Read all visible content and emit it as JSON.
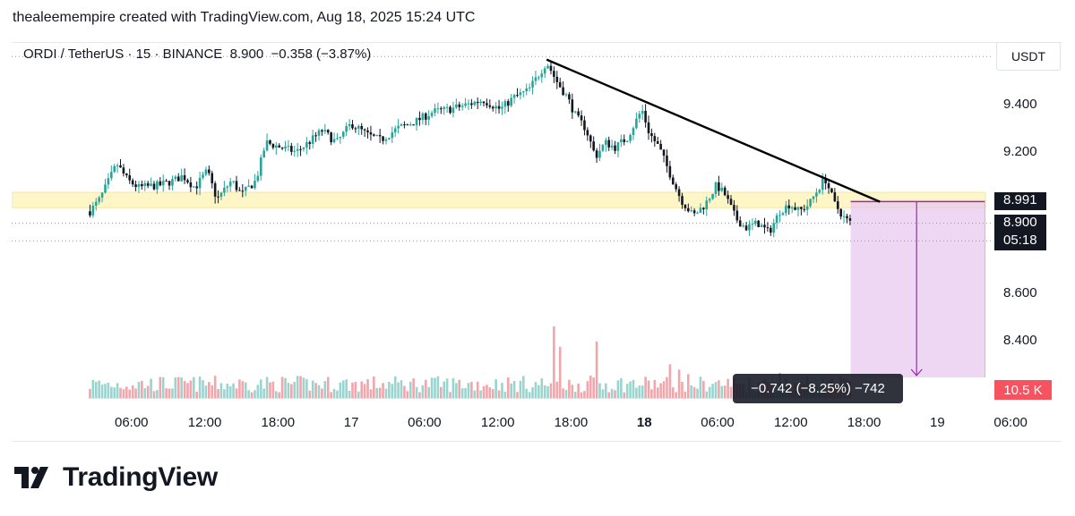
{
  "header": {
    "attribution": "thealeemempire created with TradingView.com, Aug 18, 2025 15:24 UTC"
  },
  "legend": {
    "symbol": "ORDI / TetherUS · 15 · BINANCE",
    "last": "8.900",
    "change": "−0.358 (−3.87%)"
  },
  "currency": "USDT",
  "price_tags": {
    "level": "8.991",
    "last": "8.900",
    "countdown": "05:18"
  },
  "volume_tag": "10.5 K",
  "measure": {
    "label": "−0.742 (−8.25%) −742",
    "shown": "742 (−8.25%) −742"
  },
  "brand": {
    "name": "TradingView"
  },
  "colors": {
    "up": "#26a69a",
    "down": "#131722",
    "vol_up": "#9ad4cf",
    "vol_down": "#f0a6ab",
    "support_band": "#fff6c8",
    "projection": "#e8c9ef",
    "projection_line": "#9c27b0",
    "last_tag": "#131722",
    "volume_tag": "#f7525f"
  },
  "chart_data": {
    "type": "candlestick",
    "symbol": "ORDI / TetherUS",
    "interval": "15",
    "exchange": "BINANCE",
    "ylim": [
      8.16,
      9.72
    ],
    "y_ticks": [
      9.4,
      9.2,
      8.6,
      8.4
    ],
    "y_tick_labels": [
      "9.400",
      "9.200",
      "8.600",
      "8.400"
    ],
    "x_ticks": [
      "06:00",
      "12:00",
      "18:00",
      "17",
      "06:00",
      "12:00",
      "18:00",
      "18",
      "06:00",
      "12:00",
      "18:00",
      "19",
      "06:00"
    ],
    "x_tick_times": [
      6,
      12,
      18,
      24,
      30,
      36,
      42,
      48,
      54,
      60,
      66,
      72,
      78
    ],
    "x_bold_index": 7,
    "price_path_hours": [
      [
        2.6,
        8.95
      ],
      [
        3.4,
        9.0
      ],
      [
        4.8,
        9.15
      ],
      [
        5.7,
        9.08
      ],
      [
        6.6,
        9.05
      ],
      [
        8.3,
        9.06
      ],
      [
        9.5,
        9.08
      ],
      [
        10.2,
        9.1
      ],
      [
        11.2,
        9.05
      ],
      [
        12.2,
        9.12
      ],
      [
        13.0,
        9.0
      ],
      [
        14.2,
        9.08
      ],
      [
        15.0,
        9.02
      ],
      [
        16.2,
        9.08
      ],
      [
        17.0,
        9.24
      ],
      [
        18.2,
        9.22
      ],
      [
        19.5,
        9.2
      ],
      [
        20.5,
        9.24
      ],
      [
        21.6,
        9.29
      ],
      [
        22.8,
        9.24
      ],
      [
        24.0,
        9.32
      ],
      [
        25.4,
        9.27
      ],
      [
        26.4,
        9.25
      ],
      [
        27.8,
        9.3
      ],
      [
        29.3,
        9.33
      ],
      [
        30.7,
        9.37
      ],
      [
        32.0,
        9.38
      ],
      [
        33.5,
        9.4
      ],
      [
        34.8,
        9.42
      ],
      [
        36.2,
        9.38
      ],
      [
        37.3,
        9.43
      ],
      [
        38.5,
        9.46
      ],
      [
        39.4,
        9.53
      ],
      [
        40.0,
        9.58
      ],
      [
        40.8,
        9.5
      ],
      [
        41.7,
        9.43
      ],
      [
        42.4,
        9.35
      ],
      [
        43.2,
        9.3
      ],
      [
        44.0,
        9.18
      ],
      [
        44.8,
        9.24
      ],
      [
        45.6,
        9.22
      ],
      [
        46.6,
        9.26
      ],
      [
        47.2,
        9.32
      ],
      [
        47.8,
        9.38
      ],
      [
        48.4,
        9.28
      ],
      [
        49.2,
        9.22
      ],
      [
        50.0,
        9.12
      ],
      [
        51.0,
        9.0
      ],
      [
        52.0,
        8.93
      ],
      [
        53.0,
        8.98
      ],
      [
        53.9,
        9.06
      ],
      [
        54.6,
        9.02
      ],
      [
        55.5,
        8.92
      ],
      [
        56.3,
        8.88
      ],
      [
        57.3,
        8.9
      ],
      [
        58.2,
        8.86
      ],
      [
        59.1,
        8.95
      ],
      [
        59.9,
        8.98
      ],
      [
        60.7,
        8.95
      ],
      [
        61.5,
        8.98
      ],
      [
        62.3,
        9.05
      ],
      [
        62.8,
        9.09
      ],
      [
        63.6,
        8.98
      ],
      [
        64.4,
        8.92
      ],
      [
        64.9,
        8.9
      ]
    ],
    "volume_spikes_hours": [
      [
        40.6,
        0.95
      ],
      [
        41.0,
        0.68
      ],
      [
        42.1,
        0.18
      ],
      [
        44.0,
        0.75
      ],
      [
        50.0,
        0.45
      ],
      [
        50.8,
        0.38
      ],
      [
        51.6,
        0.32
      ],
      [
        59.0,
        0.34
      ]
    ],
    "trendline": {
      "from": [
        40.0,
        9.59
      ],
      "to": [
        67.3,
        8.99
      ]
    },
    "support_band": [
      8.965,
      9.03
    ],
    "dotted_levels": [
      9.603,
      8.9,
      8.825
    ],
    "projection": {
      "x_from": 64.9,
      "x_to": 75.9,
      "y_from": 8.991,
      "y_to": 8.249,
      "arrow_x": 70.3
    },
    "measure_change_abs": -0.742,
    "measure_change_pct": -8.25,
    "volume_last_label": "10.5 K"
  }
}
